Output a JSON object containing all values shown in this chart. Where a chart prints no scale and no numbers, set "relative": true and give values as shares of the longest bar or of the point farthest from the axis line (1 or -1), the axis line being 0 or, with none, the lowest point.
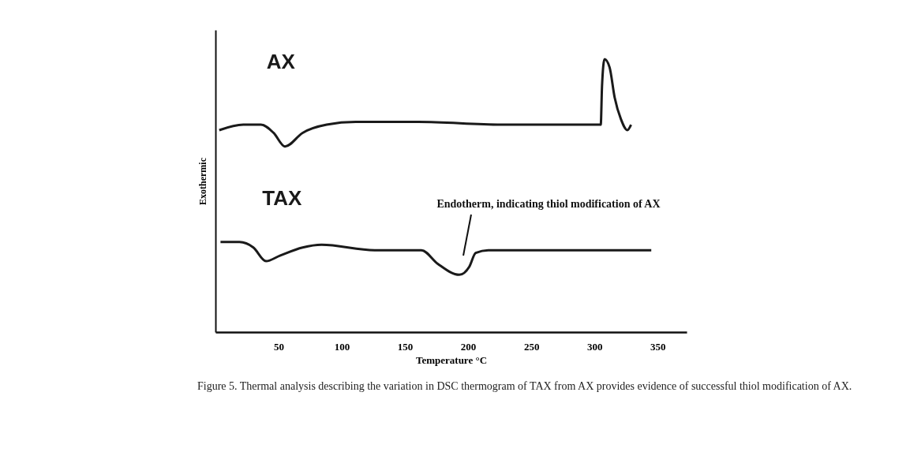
{
  "chart_data": {
    "type": "line",
    "relative": true,
    "xlabel": "Temperature °C",
    "ylabel": "Exothermic",
    "xlim": [
      0,
      373
    ],
    "xticks": [
      50,
      100,
      150,
      200,
      250,
      300,
      350
    ],
    "tick_labels": "x",
    "grid": false,
    "legend": false,
    "marker": "none",
    "line_style": "solid",
    "series": [
      {
        "name": "AX",
        "color": "#1a1a1a",
        "x": [
          3,
          22,
          36,
          46,
          55,
          69,
          88,
          111,
          161,
          226,
          266,
          305,
          306,
          308,
          312,
          316,
          321,
          326,
          329
        ],
        "values": [
          0.74,
          0.76,
          0.76,
          0.73,
          0.68,
          0.73,
          0.76,
          0.77,
          0.77,
          0.76,
          0.76,
          0.76,
          0.9,
          1.0,
          0.97,
          0.86,
          0.78,
          0.74,
          0.76
        ]
      },
      {
        "name": "TAX",
        "color": "#1a1a1a",
        "x": [
          4,
          19,
          30,
          40,
          51,
          69,
          84,
          126,
          163,
          176,
          193,
          201,
          206,
          216,
          261,
          316,
          345
        ],
        "values": [
          0.33,
          0.33,
          0.31,
          0.26,
          0.28,
          0.31,
          0.32,
          0.3,
          0.3,
          0.25,
          0.21,
          0.24,
          0.29,
          0.3,
          0.3,
          0.3,
          0.3
        ]
      }
    ],
    "annotations": [
      "Endotherm, indicating thiol modification of AX",
      "Figure 5. Thermal analysis describing the variation in DSC thermogram of TAX from AX provides evidence of successful thiol modification of AX."
    ]
  }
}
